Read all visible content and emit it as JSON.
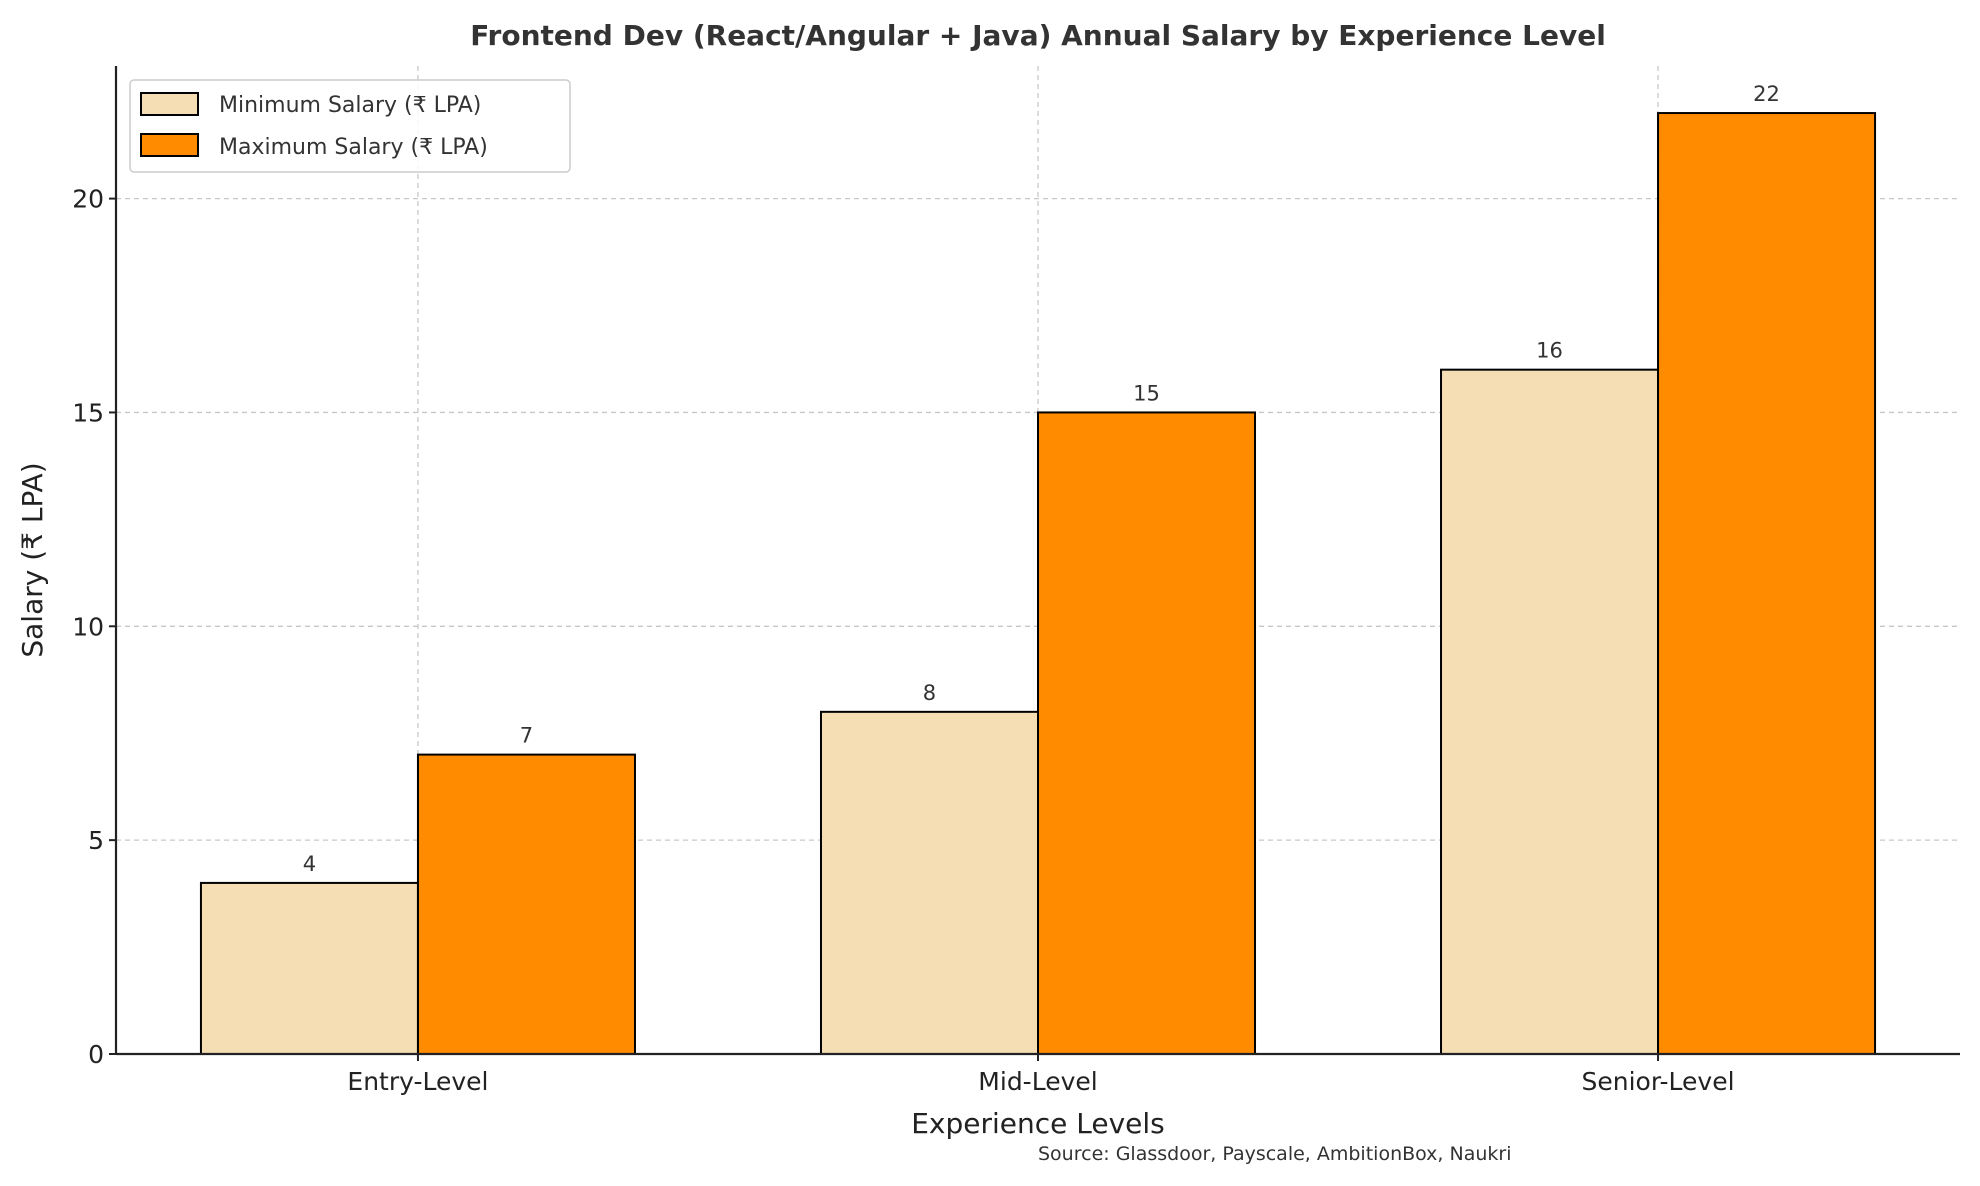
{
  "chart_data": {
    "type": "bar",
    "title": "Frontend Dev (React/Angular + Java) Annual Salary by Experience Level",
    "xlabel": "Experience Levels",
    "ylabel": "Salary (₹ LPA)",
    "categories": [
      "Entry-Level",
      "Mid-Level",
      "Senior-Level"
    ],
    "series": [
      {
        "name": "Minimum Salary (₹ LPA)",
        "values": [
          4,
          8,
          16
        ],
        "color": "#F5DEB3"
      },
      {
        "name": "Maximum Salary (₹ LPA)",
        "values": [
          7,
          15,
          22
        ],
        "color": "#FF8C00"
      }
    ],
    "ylim": [
      0,
      23.1
    ],
    "yticks": [
      0,
      5,
      10,
      15,
      20
    ],
    "grid": true,
    "legend_position": "top-left",
    "data_labels": true,
    "annotation": "Source: Glassdoor, Payscale, AmbitionBox, Naukri"
  }
}
